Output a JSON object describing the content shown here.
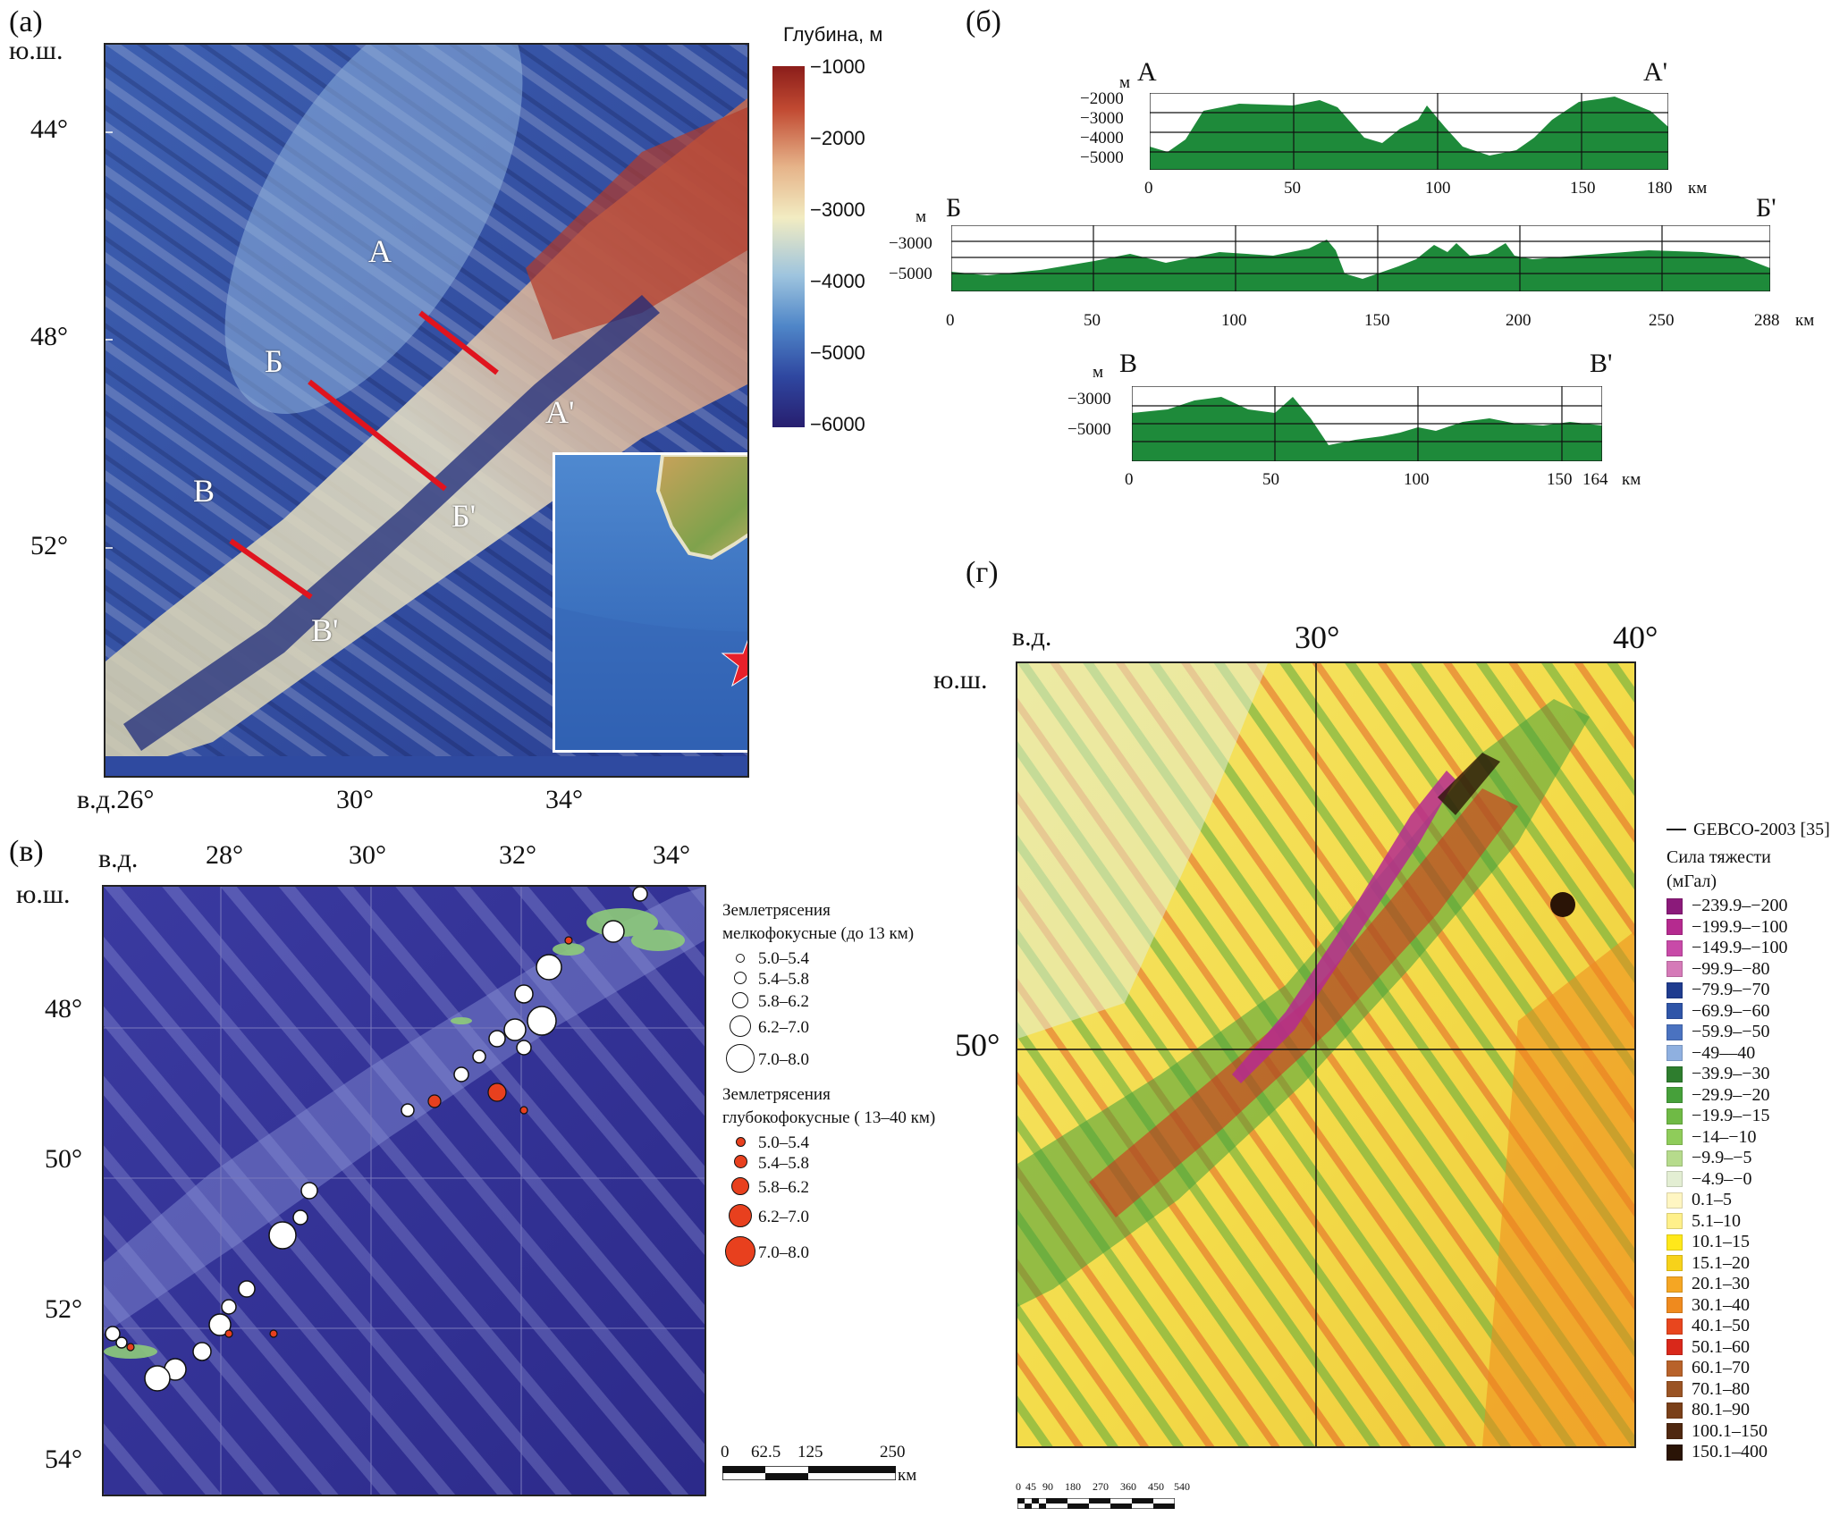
{
  "panel_a": {
    "letter": "(а)",
    "colorbar": {
      "title": "Глубина, м",
      "ticks": [
        "−1000",
        "−2000",
        "−3000",
        "−4000",
        "−5000",
        "−6000"
      ]
    },
    "lat_header": "ю.ш.",
    "lat_labels": [
      "44°",
      "48°",
      "52°"
    ],
    "lon_labels": [
      "в.д.26°",
      "30°",
      "34°"
    ],
    "profile_labels": [
      "А",
      "А'",
      "Б",
      "Б'",
      "В",
      "В'"
    ]
  },
  "panel_b": {
    "letter": "(б)",
    "profiles": [
      {
        "start": "А",
        "end": "А'",
        "unit": "м",
        "y_ticks": [
          "−2000",
          "−3000",
          "−4000",
          "−5000"
        ],
        "x_ticks": [
          "0",
          "50",
          "100",
          "150",
          "180"
        ],
        "x_unit": "км"
      },
      {
        "start": "Б",
        "end": "Б'",
        "unit": "м",
        "y_ticks": [
          "−3000",
          "−5000"
        ],
        "x_ticks": [
          "0",
          "50",
          "100",
          "150",
          "200",
          "250",
          "288"
        ],
        "x_unit": "км"
      },
      {
        "start": "В",
        "end": "В'",
        "unit": "м",
        "y_ticks": [
          "−3000",
          "−5000"
        ],
        "x_ticks": [
          "0",
          "50",
          "100",
          "150",
          "164"
        ],
        "x_unit": "км"
      }
    ]
  },
  "panel_v": {
    "letter": "(в)",
    "lon_header": "в.д.",
    "lat_header": "ю.ш.",
    "lon_labels": [
      "28°",
      "30°",
      "32°",
      "34°"
    ],
    "lat_labels": [
      "48°",
      "50°",
      "52°",
      "54°"
    ],
    "legend_shallow_title": [
      "Землетрясения",
      "мелкофокусные (до 13 км)"
    ],
    "legend_deep_title": [
      "Землетрясения",
      "глубокофокусные ( 13–40 км)"
    ],
    "magnitude_classes": [
      "5.0–5.4",
      "5.4–5.8",
      "5.8–6.2",
      "6.2–7.0",
      "7.0–8.0"
    ],
    "scale": {
      "ticks": [
        "0",
        "62.5",
        "125",
        "250"
      ],
      "unit": "км"
    }
  },
  "panel_g": {
    "letter": "(г)",
    "lon_header": "в.д.",
    "lat_header": "ю.ш.",
    "lon_labels": [
      "30°",
      "40°"
    ],
    "lat_labels": [
      "50°"
    ],
    "line_legend": "GEBCO-2003 [35]",
    "legend_title": [
      "Сила тяжести",
      "(мГал)"
    ],
    "classes": [
      {
        "label": "−239.9–−200",
        "color": "#8b1a7a"
      },
      {
        "label": "−199.9–−100",
        "color": "#b52a8f"
      },
      {
        "label": "−149.9–−100",
        "color": "#c84aa8"
      },
      {
        "label": "−99.9–−80",
        "color": "#d57ab8"
      },
      {
        "label": "−79.9–−70",
        "color": "#1f3c8f"
      },
      {
        "label": "−69.9–−60",
        "color": "#2f55a8"
      },
      {
        "label": "−59.9–−50",
        "color": "#4a72c0"
      },
      {
        "label": "−49––40",
        "color": "#8fb0e0"
      },
      {
        "label": "−39.9–−30",
        "color": "#2e7d2e"
      },
      {
        "label": "−29.9–−20",
        "color": "#46a03a"
      },
      {
        "label": "−19.9–−15",
        "color": "#6fba45"
      },
      {
        "label": "−14–−10",
        "color": "#8fcc5a"
      },
      {
        "label": "−9.9–−5",
        "color": "#b6db8c"
      },
      {
        "label": "−4.9–−0",
        "color": "#e3eed3"
      },
      {
        "label": "0.1–5",
        "color": "#fff6c2"
      },
      {
        "label": "5.1–10",
        "color": "#fff08a"
      },
      {
        "label": "10.1–15",
        "color": "#ffe81a"
      },
      {
        "label": "15.1–20",
        "color": "#f7d21a"
      },
      {
        "label": "20.1–30",
        "color": "#f5a623"
      },
      {
        "label": "30.1–40",
        "color": "#ef8a1e"
      },
      {
        "label": "40.1–50",
        "color": "#e8461e"
      },
      {
        "label": "50.1–60",
        "color": "#d9281a"
      },
      {
        "label": "60.1–70",
        "color": "#b8622a"
      },
      {
        "label": "70.1–80",
        "color": "#9a5424"
      },
      {
        "label": "80.1–90",
        "color": "#7a4019"
      },
      {
        "label": "100.1–150",
        "color": "#4f2810"
      },
      {
        "label": "150.1–400",
        "color": "#2a1406"
      }
    ],
    "scale_ticks": [
      "0",
      "45",
      "90",
      "180",
      "270",
      "360",
      "450",
      "540"
    ]
  }
}
